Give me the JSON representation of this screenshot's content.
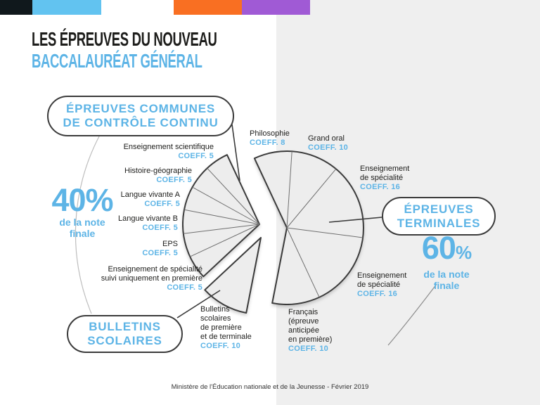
{
  "page": {
    "title_line1": "LES ÉPREUVES DU NOUVEAU",
    "title_line2": "BACCALAURÉAT GÉNÉRAL",
    "footer": "Ministère de l'Éducation nationale et de la Jeunesse - Février 2019",
    "brand_bar_colors": [
      "#10181c",
      "#62c3f0",
      "#f96f22",
      "#a05ad5"
    ],
    "accent_blue": "#5db4e6"
  },
  "sections": {
    "continu": {
      "pill_label": "ÉPREUVES COMMUNES\nDE CONTRÔLE CONTINU",
      "share_value": "40",
      "share_sign": "%",
      "share_caption": "de la note\nfinale"
    },
    "terminales": {
      "pill_label": "ÉPREUVES\nTERMINALES",
      "share_value": "60",
      "share_sign": "%",
      "share_caption": "de la note\nfinale"
    },
    "bulletins": {
      "pill_label": "BULLETINS\nSCOLAIRES"
    }
  },
  "chart_data": {
    "type": "pie",
    "title": "Les épreuves du nouveau baccalauréat général — répartition des coefficients",
    "total_coefficients": 100,
    "start_angle_deg": 115,
    "direction": "clockwise",
    "groups": [
      {
        "id": "terminales",
        "label": "ÉPREUVES TERMINALES",
        "share_pct": 60,
        "note": "60% de la note finale"
      },
      {
        "id": "bulletins",
        "label": "BULLETINS SCOLAIRES",
        "share_pct": 10,
        "note": "40% de la note finale"
      },
      {
        "id": "continu",
        "label": "ÉPREUVES COMMUNES DE CONTRÔLE CONTINU",
        "share_pct": 30,
        "note": "40% de la note finale"
      }
    ],
    "slices": [
      {
        "group": "terminales",
        "name": "Philosophie",
        "coeff": 8,
        "coeff_label": "COEFF. 8"
      },
      {
        "group": "terminales",
        "name": "Grand oral",
        "coeff": 10,
        "coeff_label": "COEFF. 10"
      },
      {
        "group": "terminales",
        "name": "Enseignement\nde spécialité",
        "coeff": 16,
        "coeff_label": "COEFF. 16"
      },
      {
        "group": "terminales",
        "name": "Enseignement\nde spécialité",
        "coeff": 16,
        "coeff_label": "COEFF. 16"
      },
      {
        "group": "terminales",
        "name": "Français\n(épreuve\nanticipée\nen première)",
        "coeff": 10,
        "coeff_label": "COEFF. 10"
      },
      {
        "group": "bulletins",
        "name": "Bulletins\nscolaires\nde première\net de terminale",
        "coeff": 10,
        "coeff_label": "COEFF. 10"
      },
      {
        "group": "continu",
        "name": "Enseignement de spécialité\nsuivi uniquement en première",
        "coeff": 5,
        "coeff_label": "COEFF. 5"
      },
      {
        "group": "continu",
        "name": "EPS",
        "coeff": 5,
        "coeff_label": "COEFF. 5"
      },
      {
        "group": "continu",
        "name": "Langue vivante B",
        "coeff": 5,
        "coeff_label": "COEFF. 5"
      },
      {
        "group": "continu",
        "name": "Langue vivante A",
        "coeff": 5,
        "coeff_label": "COEFF. 5"
      },
      {
        "group": "continu",
        "name": "Histoire-géographie",
        "coeff": 5,
        "coeff_label": "COEFF. 5"
      },
      {
        "group": "continu",
        "name": "Enseignement scientifique",
        "coeff": 5,
        "coeff_label": "COEFF. 5"
      }
    ]
  }
}
